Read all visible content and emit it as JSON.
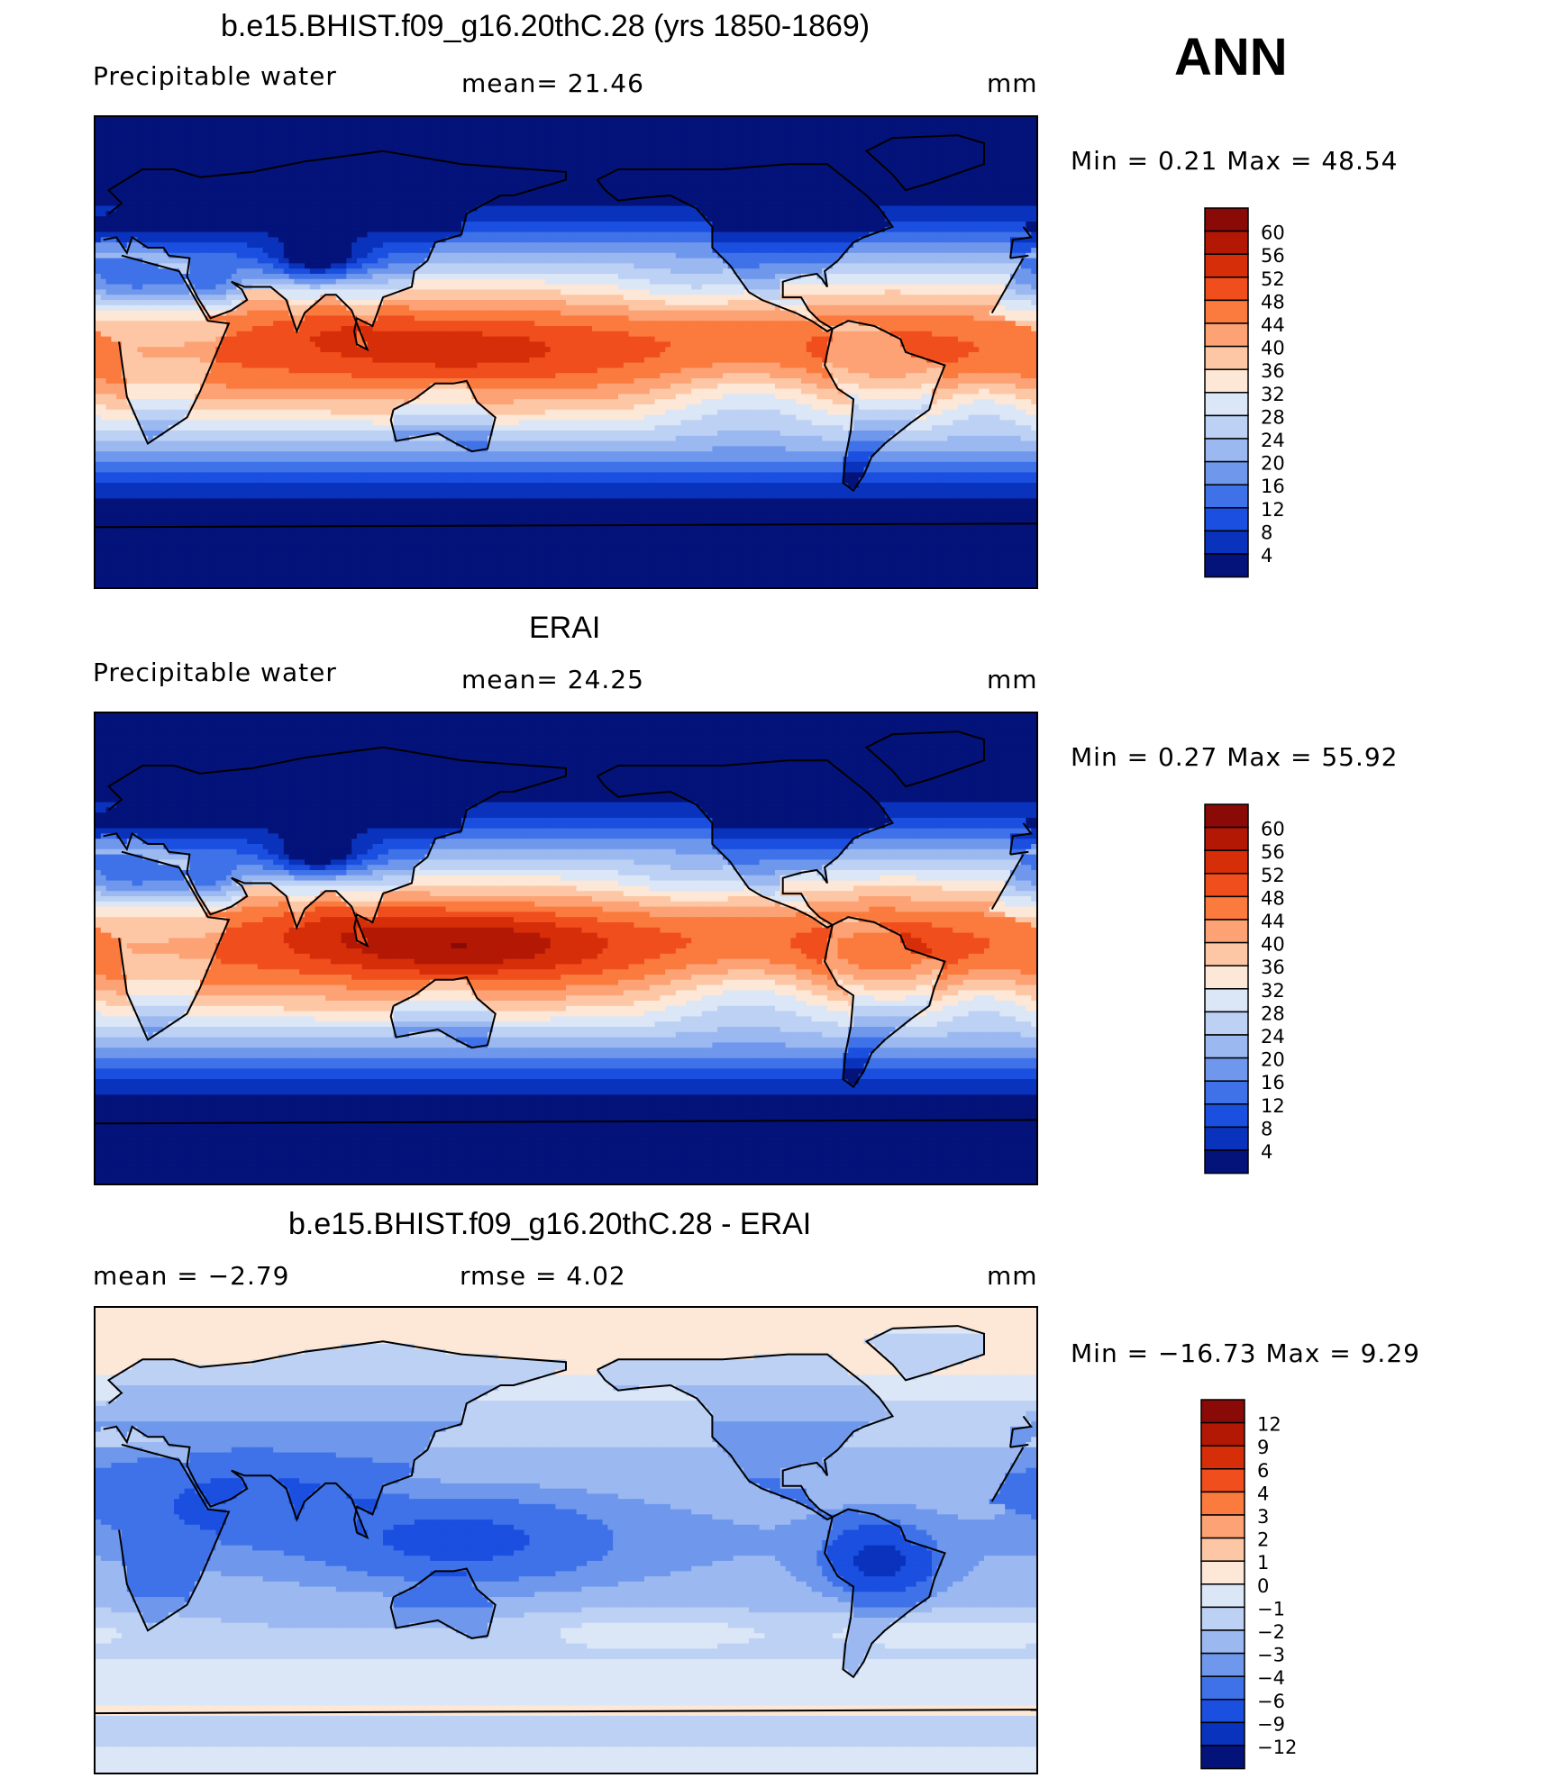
{
  "season": "ANN",
  "panels": [
    {
      "title": "b.e15.BHIST.f09_g16.20thC.28 (yrs 1850-1869)",
      "left_label": "Precipitable  water",
      "center_label": "mean=   21.46",
      "right_label": "mm",
      "minmax": "Min  =     0.21  Max  =    48.54"
    },
    {
      "title": "ERAI",
      "left_label": "Precipitable  water",
      "center_label": "mean=   24.25",
      "right_label": "mm",
      "minmax": "Min  =     0.27  Max  =    55.92"
    },
    {
      "title": "b.e15.BHIST.f09_g16.20thC.28 - ERAI",
      "left_label": "mean  =    −2.79",
      "center_label": "rmse  =     4.02",
      "right_label": "mm",
      "minmax": "Min  = −16.73  Max  =     9.29"
    }
  ],
  "chart_data": [
    {
      "type": "heatmap",
      "field": "precipitable water",
      "units": "mm",
      "stats": {
        "mean": 21.46,
        "min": 0.21,
        "max": 48.54
      },
      "colorbar_levels": [
        60,
        56,
        52,
        48,
        44,
        40,
        36,
        32,
        28,
        24,
        20,
        16,
        12,
        8,
        4
      ],
      "colorbar_colors": [
        "#8a0a07",
        "#b31805",
        "#d62e08",
        "#f04e1c",
        "#fb7a3e",
        "#fca274",
        "#fdc7a6",
        "#fde7d6",
        "#dbe6f7",
        "#bcd1f3",
        "#9bb9f0",
        "#6f98ec",
        "#3f72e8",
        "#1a4fe0",
        "#0a33bd",
        "#03137a"
      ]
    },
    {
      "type": "heatmap",
      "field": "precipitable water",
      "units": "mm",
      "stats": {
        "mean": 24.25,
        "min": 0.27,
        "max": 55.92
      },
      "colorbar_levels": [
        60,
        56,
        52,
        48,
        44,
        40,
        36,
        32,
        28,
        24,
        20,
        16,
        12,
        8,
        4
      ],
      "colorbar_colors": [
        "#8a0a07",
        "#b31805",
        "#d62e08",
        "#f04e1c",
        "#fb7a3e",
        "#fca274",
        "#fdc7a6",
        "#fde7d6",
        "#dbe6f7",
        "#bcd1f3",
        "#9bb9f0",
        "#6f98ec",
        "#3f72e8",
        "#1a4fe0",
        "#0a33bd",
        "#03137a"
      ]
    },
    {
      "type": "heatmap",
      "field": "difference",
      "units": "mm",
      "stats": {
        "mean": -2.79,
        "rmse": 4.02,
        "min": -16.73,
        "max": 9.29
      },
      "colorbar_levels": [
        "12",
        "9",
        "6",
        "4",
        "3",
        "2",
        "1",
        "0",
        "−1",
        "−2",
        "−3",
        "−4",
        "−6",
        "−9",
        "−12"
      ],
      "colorbar_colors": [
        "#8a0a07",
        "#b31805",
        "#d62e08",
        "#f04e1c",
        "#fb7a3e",
        "#fca274",
        "#fdc7a6",
        "#fde7d6",
        "#dbe6f7",
        "#bcd1f3",
        "#9bb9f0",
        "#6f98ec",
        "#3f72e8",
        "#1a4fe0",
        "#0a33bd",
        "#03137a"
      ]
    }
  ]
}
